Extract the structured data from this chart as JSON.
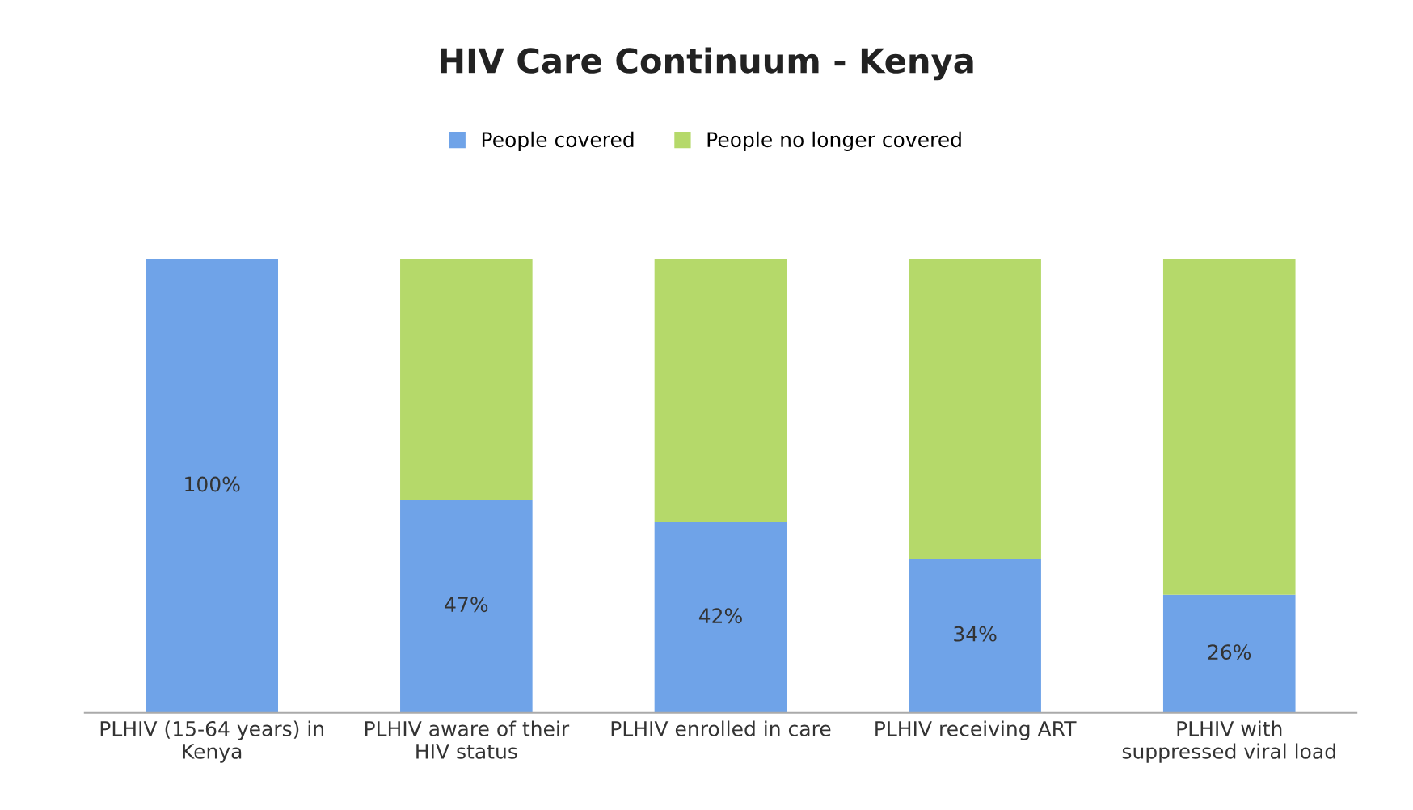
{
  "chart_data": {
    "type": "bar",
    "title": "HIV Care Continuum - Kenya",
    "stacked": true,
    "legend": "top",
    "grid": false,
    "categories": [
      "PLHIV (15-64 years) in\nKenya",
      "PLHIV aware of their\nHIV status",
      "PLHIV enrolled in care",
      "PLHIV receiving ART",
      "PLHIV with\nsuppressed viral load"
    ],
    "series": [
      {
        "name": "People covered",
        "color": "#6fa3e8",
        "values": [
          100,
          47,
          42,
          34,
          26
        ],
        "value_labels": [
          "100%",
          "47%",
          "42%",
          "34%",
          "26%"
        ]
      },
      {
        "name": "People no longer covered",
        "color": "#b5d96a",
        "values": [
          0,
          53,
          58,
          66,
          74
        ]
      }
    ]
  }
}
